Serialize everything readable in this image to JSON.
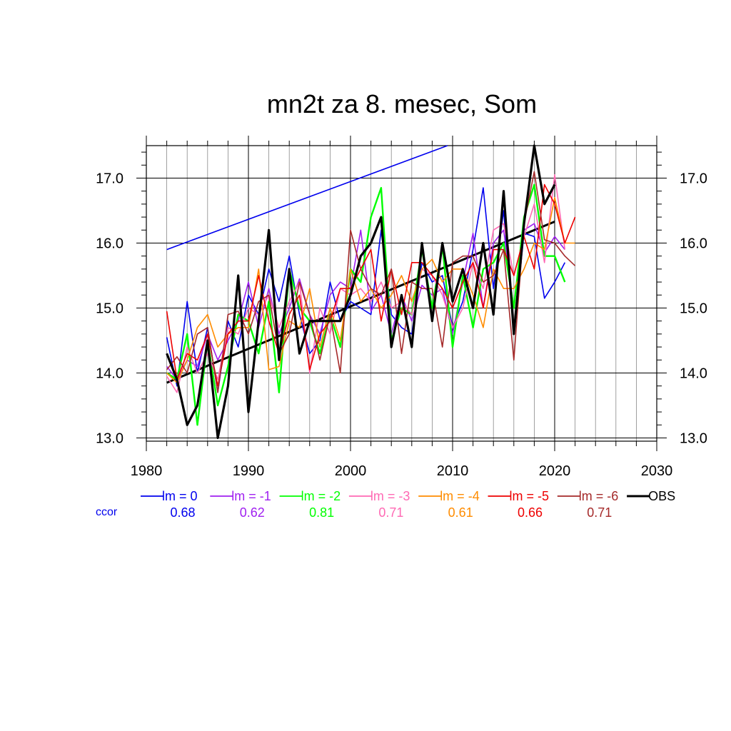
{
  "chart_data": {
    "type": "line",
    "title": "mn2t za 8. mesec, Som",
    "xlabel": "",
    "ylabel": "",
    "xlim": [
      1980,
      2030
    ],
    "ylim": [
      12.95,
      17.5
    ],
    "xticks": [
      1980,
      1990,
      2000,
      2010,
      2020,
      2030
    ],
    "xtick_labels": [
      "1980",
      "1990",
      "2000",
      "2010",
      "2020",
      "2030"
    ],
    "yticks": [
      13.0,
      14.0,
      15.0,
      16.0,
      17.0
    ],
    "ytick_labels": [
      "13.0",
      "14.0",
      "15.0",
      "16.0",
      "17.0"
    ],
    "grid": true,
    "legend_position": "bottom",
    "ccor_label": "ccor",
    "series": [
      {
        "name": "lm = 0",
        "color": "#0000ee",
        "ccor": "0.68",
        "x": [
          1982,
          1983,
          1984,
          1985,
          1986,
          1987,
          1988,
          1989,
          1990,
          1991,
          1992,
          1993,
          1994,
          1995,
          1996,
          1997,
          1998,
          1999,
          2000,
          2001,
          2002,
          2003,
          2004,
          2005,
          2006,
          2007,
          2008,
          2009,
          2010,
          2011,
          2012,
          2013,
          2014,
          2015,
          2016,
          2017,
          2018,
          2019,
          2020,
          2021
        ],
        "y": [
          14.55,
          13.8,
          15.1,
          14.0,
          14.7,
          13.7,
          14.8,
          14.4,
          15.2,
          14.9,
          15.6,
          15.1,
          15.8,
          14.9,
          14.3,
          14.5,
          15.4,
          14.8,
          15.1,
          15.0,
          14.9,
          16.2,
          14.9,
          14.7,
          14.6,
          15.7,
          15.4,
          15.5,
          14.7,
          15.1,
          15.9,
          16.85,
          15.3,
          16.5,
          14.6,
          16.15,
          16.1,
          15.15,
          15.4,
          15.7
        ]
      },
      {
        "name": "lm = -1",
        "color": "#a020f0",
        "ccor": "0.62",
        "x": [
          1982,
          1983,
          1984,
          1985,
          1986,
          1987,
          1988,
          1989,
          1990,
          1991,
          1992,
          1993,
          1994,
          1995,
          1996,
          1997,
          1998,
          1999,
          2000,
          2001,
          2002,
          2003,
          2004,
          2005,
          2006,
          2007,
          2008,
          2009,
          2010,
          2011,
          2012,
          2013,
          2014,
          2015,
          2016,
          2017,
          2018,
          2019,
          2020,
          2021
        ],
        "y": [
          14.1,
          13.9,
          14.2,
          14.1,
          14.6,
          14.2,
          14.5,
          14.8,
          15.4,
          14.7,
          15.3,
          14.6,
          15.0,
          15.45,
          14.9,
          14.6,
          15.2,
          15.4,
          15.3,
          16.2,
          14.95,
          15.2,
          14.6,
          15.2,
          14.8,
          15.35,
          15.2,
          15.3,
          14.6,
          15.4,
          16.15,
          15.0,
          16.0,
          16.2,
          15.0,
          16.2,
          16.3,
          15.85,
          16.1,
          15.9
        ]
      },
      {
        "name": "lm = -2",
        "color": "#00ff00",
        "ccor": "0.81",
        "x": [
          1982,
          1983,
          1984,
          1985,
          1986,
          1987,
          1988,
          1989,
          1990,
          1991,
          1992,
          1993,
          1994,
          1995,
          1996,
          1997,
          1998,
          1999,
          2000,
          2001,
          2002,
          2003,
          2004,
          2005,
          2006,
          2007,
          2008,
          2009,
          2010,
          2011,
          2012,
          2013,
          2014,
          2015,
          2016,
          2017,
          2018,
          2019,
          2020,
          2021
        ],
        "y": [
          14.0,
          13.9,
          14.6,
          13.2,
          14.5,
          13.5,
          14.1,
          14.9,
          14.8,
          14.3,
          15.1,
          13.7,
          15.6,
          15.0,
          14.8,
          14.3,
          14.9,
          14.4,
          15.6,
          15.4,
          16.4,
          16.85,
          14.5,
          15.0,
          14.9,
          15.9,
          15.0,
          15.95,
          14.4,
          15.5,
          14.7,
          15.6,
          15.7,
          16.0,
          15.0,
          16.4,
          16.9,
          15.8,
          15.8,
          15.4
        ]
      },
      {
        "name": "lm = -3",
        "color": "#ff69b4",
        "ccor": "0.71",
        "x": [
          1982,
          1983,
          1984,
          1985,
          1986,
          1987,
          1988,
          1989,
          1990,
          1991,
          1992,
          1993,
          1994,
          1995,
          1996,
          1997,
          1998,
          1999,
          2000,
          2001,
          2002,
          2003,
          2004,
          2005,
          2006,
          2007,
          2008,
          2009,
          2010,
          2011,
          2012,
          2013,
          2014,
          2015,
          2016,
          2017,
          2018,
          2019,
          2020,
          2021
        ],
        "y": [
          13.95,
          13.7,
          14.4,
          14.0,
          14.3,
          13.9,
          14.7,
          14.6,
          15.0,
          14.9,
          15.2,
          14.7,
          15.1,
          15.4,
          14.0,
          15.0,
          14.6,
          15.3,
          15.2,
          15.3,
          15.1,
          15.4,
          15.0,
          15.1,
          14.9,
          15.6,
          15.5,
          15.2,
          14.7,
          15.0,
          15.7,
          15.3,
          16.2,
          16.3,
          15.5,
          16.1,
          16.6,
          15.7,
          17.05,
          15.9
        ]
      },
      {
        "name": "lm = -4",
        "color": "#ff8c00",
        "ccor": "0.61",
        "x": [
          1982,
          1983,
          1984,
          1985,
          1986,
          1987,
          1988,
          1989,
          1990,
          1991,
          1992,
          1993,
          1994,
          1995,
          1996,
          1997,
          1998,
          1999,
          2000,
          2001,
          2002,
          2003,
          2004,
          2005,
          2006,
          2007,
          2008,
          2009,
          2010,
          2011,
          2012,
          2013,
          2014,
          2015,
          2016,
          2017,
          2018,
          2019,
          2020,
          2021,
          2022
        ],
        "y": [
          14.0,
          13.85,
          14.2,
          14.7,
          14.9,
          14.4,
          14.6,
          14.7,
          14.7,
          15.6,
          14.05,
          14.1,
          14.8,
          14.7,
          15.3,
          14.4,
          15.0,
          14.5,
          15.6,
          15.1,
          15.3,
          15.0,
          15.2,
          15.5,
          15.1,
          15.6,
          15.75,
          15.4,
          15.6,
          15.6,
          15.2,
          14.7,
          15.6,
          15.3,
          15.3,
          15.6,
          16.0,
          15.9,
          16.7,
          16.0,
          16.0
        ]
      },
      {
        "name": "lm = -5",
        "color": "#ee0000",
        "ccor": "0.66",
        "x": [
          1982,
          1983,
          1984,
          1985,
          1986,
          1987,
          1988,
          1989,
          1990,
          1991,
          1992,
          1993,
          1994,
          1995,
          1996,
          1997,
          1998,
          1999,
          2000,
          2001,
          2002,
          2003,
          2004,
          2005,
          2006,
          2007,
          2008,
          2009,
          2010,
          2011,
          2012,
          2013,
          2014,
          2015,
          2016,
          2017,
          2018,
          2019,
          2020,
          2021,
          2022
        ],
        "y": [
          14.95,
          13.9,
          14.3,
          14.2,
          14.6,
          13.8,
          14.6,
          14.8,
          14.8,
          15.5,
          14.8,
          14.3,
          14.9,
          15.2,
          14.05,
          14.6,
          14.8,
          15.3,
          15.3,
          15.6,
          15.9,
          14.8,
          15.6,
          14.9,
          15.7,
          15.7,
          15.5,
          15.3,
          15.0,
          15.4,
          15.7,
          15.0,
          15.9,
          15.9,
          15.5,
          16.1,
          15.6,
          16.9,
          16.6,
          16.0,
          16.4
        ]
      },
      {
        "name": "lm = -6",
        "color": "#a52a2a",
        "ccor": "0.71",
        "x": [
          1982,
          1983,
          1984,
          1985,
          1986,
          1987,
          1988,
          1989,
          1990,
          1991,
          1992,
          1993,
          1994,
          1995,
          1996,
          1997,
          1998,
          1999,
          2000,
          2001,
          2002,
          2003,
          2004,
          2005,
          2006,
          2007,
          2008,
          2009,
          2010,
          2011,
          2012,
          2013,
          2014,
          2015,
          2016,
          2017,
          2018,
          2019,
          2020,
          2021,
          2022
        ],
        "y": [
          14.05,
          14.25,
          14.0,
          14.6,
          14.7,
          13.7,
          14.9,
          14.95,
          14.6,
          15.1,
          15.2,
          14.3,
          14.6,
          15.4,
          14.9,
          14.2,
          14.9,
          14.0,
          16.2,
          15.6,
          15.3,
          15.2,
          15.6,
          14.3,
          15.4,
          15.3,
          15.3,
          14.4,
          15.7,
          15.8,
          15.8,
          15.4,
          15.5,
          15.9,
          14.2,
          16.3,
          17.1,
          16.05,
          16.0,
          15.8,
          15.65
        ]
      },
      {
        "name": "OBS",
        "color": "#000000",
        "ccor": "",
        "x": [
          1982,
          1983,
          1984,
          1985,
          1986,
          1987,
          1988,
          1989,
          1990,
          1991,
          1992,
          1993,
          1994,
          1995,
          1996,
          1997,
          1998,
          1999,
          2000,
          2001,
          2002,
          2003,
          2004,
          2005,
          2006,
          2007,
          2008,
          2009,
          2010,
          2011,
          2012,
          2013,
          2014,
          2015,
          2016,
          2017,
          2018,
          2019,
          2020
        ],
        "y": [
          14.3,
          13.9,
          13.2,
          13.5,
          14.5,
          13.0,
          13.8,
          15.5,
          13.4,
          14.8,
          16.2,
          14.2,
          15.6,
          14.3,
          14.8,
          14.8,
          14.8,
          14.8,
          15.2,
          15.8,
          16.0,
          16.4,
          14.4,
          15.2,
          14.4,
          16.0,
          14.8,
          16.0,
          15.1,
          15.6,
          15.0,
          16.0,
          14.9,
          16.8,
          14.6,
          16.3,
          17.5,
          16.6,
          16.9
        ]
      }
    ],
    "trend_lines": [
      {
        "color": "#0000ee",
        "x": [
          1982,
          2009.5
        ],
        "y": [
          15.9,
          17.5
        ]
      },
      {
        "color": "#000000",
        "x": [
          1982,
          2020
        ],
        "y": [
          13.85,
          16.33
        ]
      }
    ]
  }
}
